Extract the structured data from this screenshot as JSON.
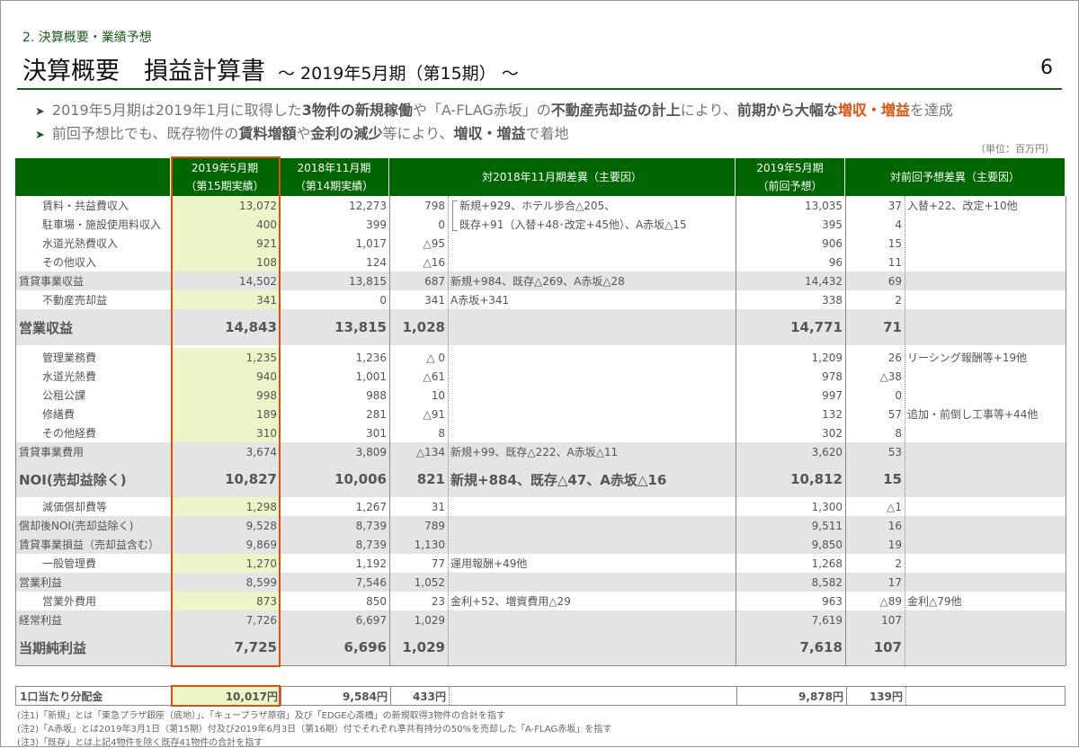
{
  "section": "2. 決算概要・業績予想",
  "title": "決算概要　損益計算書",
  "subtitle": "～ 2019年5月期（第15期） ～",
  "page_number": "6",
  "bullets": [
    [
      {
        "t": "2019年5月期は2019年1月に取得した"
      },
      {
        "t": "3物件の新規稼働",
        "b": 1
      },
      {
        "t": "や「A-FLAG赤坂」の"
      },
      {
        "t": "不動産売却益の計上",
        "b": 1
      },
      {
        "t": "により、"
      },
      {
        "t": "前期から大幅な",
        "b": 1
      },
      {
        "t": "増収・増益",
        "b": 2
      },
      {
        "t": "を達成"
      }
    ],
    [
      {
        "t": "前回予想比でも、既存物件の"
      },
      {
        "t": "賃料増額",
        "b": 1
      },
      {
        "t": "や"
      },
      {
        "t": "金利の減少",
        "b": 1
      },
      {
        "t": "等により、"
      },
      {
        "t": "増収・増益",
        "b": 1
      },
      {
        "t": "で着地"
      }
    ]
  ],
  "unit": "（単位：百万円）",
  "headers": {
    "c1": [
      "2019年5月期",
      "（第15期実績）"
    ],
    "c2": [
      "2018年11月期",
      "（第14期実績）"
    ],
    "c3": "対2018年11月期差異（主要因）",
    "c4": [
      "2019年5月期",
      "（前回予想）"
    ],
    "c5": "対前回予想差異（主要因）"
  },
  "rows": [
    {
      "label": "賃料・共益費収入",
      "v": [
        "13,072",
        "12,273",
        "798",
        "新規+929、ホテル歩合△205、",
        "13,035",
        "37",
        "入替+22、改定+10他"
      ]
    },
    {
      "label": "駐車場・施設使用料収入",
      "v": [
        "400",
        "399",
        "0",
        "既存+91（入替+48･改定+45他）、A赤坂△15",
        "395",
        "4",
        ""
      ]
    },
    {
      "label": "水道光熱費収入",
      "v": [
        "921",
        "1,017",
        "△95",
        "",
        "906",
        "15",
        ""
      ]
    },
    {
      "label": "その他収入",
      "v": [
        "108",
        "124",
        "△16",
        "",
        "96",
        "11",
        ""
      ]
    },
    {
      "label": "賃貸事業収益",
      "type": "gray",
      "v": [
        "14,502",
        "13,815",
        "687",
        "新規+984、既存△269、A赤坂△28",
        "14,432",
        "69",
        ""
      ]
    },
    {
      "label": "不動産売却益",
      "v": [
        "341",
        "0",
        "341",
        "A赤坂+341",
        "338",
        "2",
        ""
      ]
    },
    {
      "label": "営業収益",
      "type": "big",
      "v": [
        "14,843",
        "13,815",
        "1,028",
        "",
        "14,771",
        "71",
        ""
      ]
    },
    {
      "label": "管理業務費",
      "v": [
        "1,235",
        "1,236",
        "△ 0",
        "",
        "1,209",
        "26",
        "リーシング報酬等+19他"
      ]
    },
    {
      "label": "水道光熱費",
      "v": [
        "940",
        "1,001",
        "△61",
        "",
        "978",
        "△38",
        ""
      ]
    },
    {
      "label": "公租公課",
      "v": [
        "998",
        "988",
        "10",
        "",
        "997",
        "0",
        ""
      ]
    },
    {
      "label": "修繕費",
      "v": [
        "189",
        "281",
        "△91",
        "",
        "132",
        "57",
        "追加・前倒し工事等+44他"
      ]
    },
    {
      "label": "その他経費",
      "v": [
        "310",
        "301",
        "8",
        "",
        "302",
        "8",
        ""
      ]
    },
    {
      "label": "賃貸事業費用",
      "type": "gray",
      "v": [
        "3,674",
        "3,809",
        "△134",
        "新規+99、既存△222、A赤坂△11",
        "3,620",
        "53",
        ""
      ]
    },
    {
      "label": "NOI(売却益除く)",
      "type": "big",
      "v": [
        "10,827",
        "10,006",
        "821",
        "新規+884、既存△47、A赤坂△16",
        "10,812",
        "15",
        ""
      ]
    },
    {
      "label": "減価償却費等",
      "v": [
        "1,298",
        "1,267",
        "31",
        "",
        "1,300",
        "△1",
        ""
      ]
    },
    {
      "label": "償却後NOI(売却益除く)",
      "type": "gray",
      "v": [
        "9,528",
        "8,739",
        "789",
        "",
        "9,511",
        "16",
        ""
      ]
    },
    {
      "label": "賃貸事業損益（売却益含む）",
      "type": "gray",
      "v": [
        "9,869",
        "8,739",
        "1,130",
        "",
        "9,850",
        "19",
        ""
      ]
    },
    {
      "label": "一般管理費",
      "v": [
        "1,270",
        "1,192",
        "77",
        "運用報酬+49他",
        "1,268",
        "2",
        ""
      ]
    },
    {
      "label": "営業利益",
      "type": "gray",
      "v": [
        "8,599",
        "7,546",
        "1,052",
        "",
        "8,582",
        "17",
        ""
      ]
    },
    {
      "label": "営業外費用",
      "v": [
        "873",
        "850",
        "23",
        "金利+52、増資費用△29",
        "963",
        "△89",
        "金利△79他"
      ]
    },
    {
      "label": "経常利益",
      "type": "gray",
      "v": [
        "7,726",
        "6,697",
        "1,029",
        "",
        "7,619",
        "107",
        ""
      ]
    },
    {
      "label": "当期純利益",
      "type": "big",
      "v": [
        "7,725",
        "6,696",
        "1,029",
        "",
        "7,618",
        "107",
        ""
      ]
    }
  ],
  "distribution": {
    "label": "1口当たり分配金",
    "v": [
      "10,017円",
      "9,584円",
      "433円",
      "",
      "9,878円",
      "139円",
      ""
    ]
  },
  "notes": [
    "(注1)「新規」とは「東急プラザ銀座（底地）」、「キュープラザ原宿」及び「EDGE心斎橋」の新規取得3物件の合計を指す",
    "(注2)「A赤坂」とは2019年3月1日（第15期）付及び2019年6月3日（第16期）付でそれぞれ準共有持分の50%を売却した「A-FLAG赤坂」を指す",
    "(注3)「既存」とは上記4物件を除く既存41物件の合計を指す"
  ]
}
